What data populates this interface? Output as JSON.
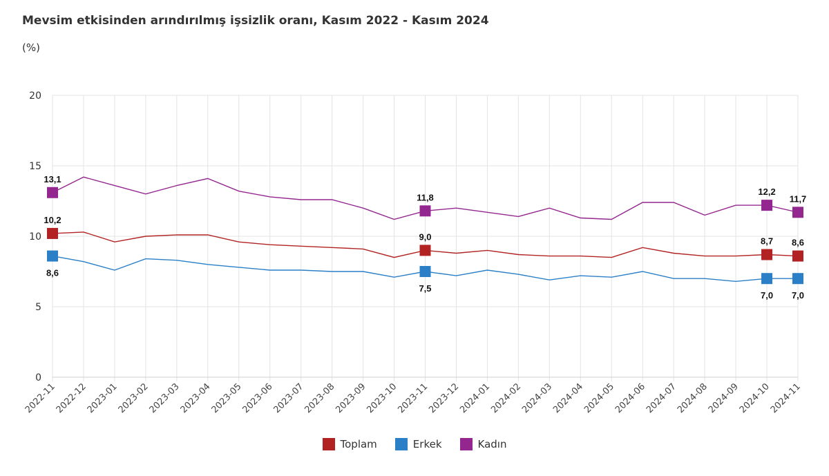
{
  "title": "Mevsim etkisinden arındırılmış işsizlik oranı, Kasım 2022 - Kasım 2024",
  "unit": "(%)",
  "chart_data": {
    "type": "line",
    "categories": [
      "2022-11",
      "2022-12",
      "2023-01",
      "2023-02",
      "2023-03",
      "2023-04",
      "2023-05",
      "2023-06",
      "2023-07",
      "2023-08",
      "2023-09",
      "2023-10",
      "2023-11",
      "2023-12",
      "2024-01",
      "2024-02",
      "2024-03",
      "2024-04",
      "2024-05",
      "2024-06",
      "2024-07",
      "2024-08",
      "2024-09",
      "2024-10",
      "2024-11"
    ],
    "ylim": [
      0,
      20
    ],
    "yticks": [
      0,
      5,
      10,
      15,
      20
    ],
    "grid": true,
    "legend_position": "bottom",
    "series": [
      {
        "name": "Toplam",
        "color": "#b22222",
        "values": [
          10.2,
          10.3,
          9.6,
          10.0,
          10.1,
          10.1,
          9.6,
          9.4,
          9.3,
          9.2,
          9.1,
          8.5,
          9.0,
          8.8,
          9.0,
          8.7,
          8.6,
          8.6,
          8.5,
          9.2,
          8.8,
          8.6,
          8.6,
          8.7,
          8.6
        ],
        "labels": [
          {
            "i": 0,
            "text": "10,2",
            "pos": "above"
          },
          {
            "i": 12,
            "text": "9,0",
            "pos": "above"
          },
          {
            "i": 23,
            "text": "8,7",
            "pos": "above"
          },
          {
            "i": 24,
            "text": "8,6",
            "pos": "above"
          }
        ]
      },
      {
        "name": "Erkek",
        "color": "#2a7fc7",
        "values": [
          8.6,
          8.2,
          7.6,
          8.4,
          8.3,
          8.0,
          7.8,
          7.6,
          7.6,
          7.5,
          7.5,
          7.1,
          7.5,
          7.2,
          7.6,
          7.3,
          6.9,
          7.2,
          7.1,
          7.5,
          7.0,
          7.0,
          6.8,
          7.0,
          7.0
        ],
        "labels": [
          {
            "i": 0,
            "text": "8,6",
            "pos": "below"
          },
          {
            "i": 12,
            "text": "7,5",
            "pos": "below"
          },
          {
            "i": 23,
            "text": "7,0",
            "pos": "below"
          },
          {
            "i": 24,
            "text": "7,0",
            "pos": "below"
          }
        ]
      },
      {
        "name": "Kadın",
        "color": "#93278f",
        "values": [
          13.1,
          14.2,
          13.6,
          13.0,
          13.6,
          14.1,
          13.2,
          12.8,
          12.6,
          12.6,
          12.0,
          11.2,
          11.8,
          12.0,
          11.7,
          11.4,
          12.0,
          11.3,
          11.2,
          12.4,
          12.4,
          11.5,
          12.2,
          12.2,
          11.7
        ],
        "labels": [
          {
            "i": 0,
            "text": "13,1",
            "pos": "above"
          },
          {
            "i": 12,
            "text": "11,8",
            "pos": "above"
          },
          {
            "i": 23,
            "text": "12,2",
            "pos": "above"
          },
          {
            "i": 24,
            "text": "11,7",
            "pos": "above"
          }
        ]
      }
    ],
    "markers_at": [
      0,
      12,
      23,
      24
    ]
  }
}
